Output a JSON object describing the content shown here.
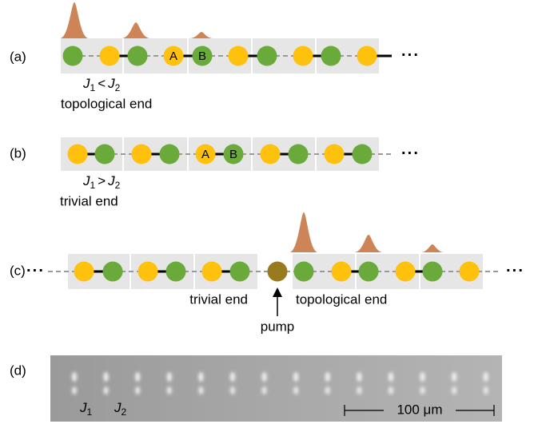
{
  "panels": {
    "a": {
      "label": "(a)",
      "site_a": "A",
      "site_b": "B",
      "condition": [
        "J",
        "1",
        "<",
        "J",
        "2"
      ],
      "end": "topological end",
      "ellipsis": "···"
    },
    "b": {
      "label": "(b)",
      "site_a": "A",
      "site_b": "B",
      "condition": [
        "J",
        "1",
        ">",
        "J",
        "2"
      ],
      "end": "trivial end",
      "ellipsis": "···"
    },
    "c": {
      "label": "(c)",
      "left_ellipsis": "···",
      "right_ellipsis": "···",
      "left_end": "trivial end",
      "right_end": "topological end",
      "pump": "pump"
    },
    "d": {
      "label": "(d)",
      "j1": [
        "J",
        "1"
      ],
      "j2": [
        "J",
        "2"
      ],
      "scale_bar": "100 μm"
    }
  }
}
